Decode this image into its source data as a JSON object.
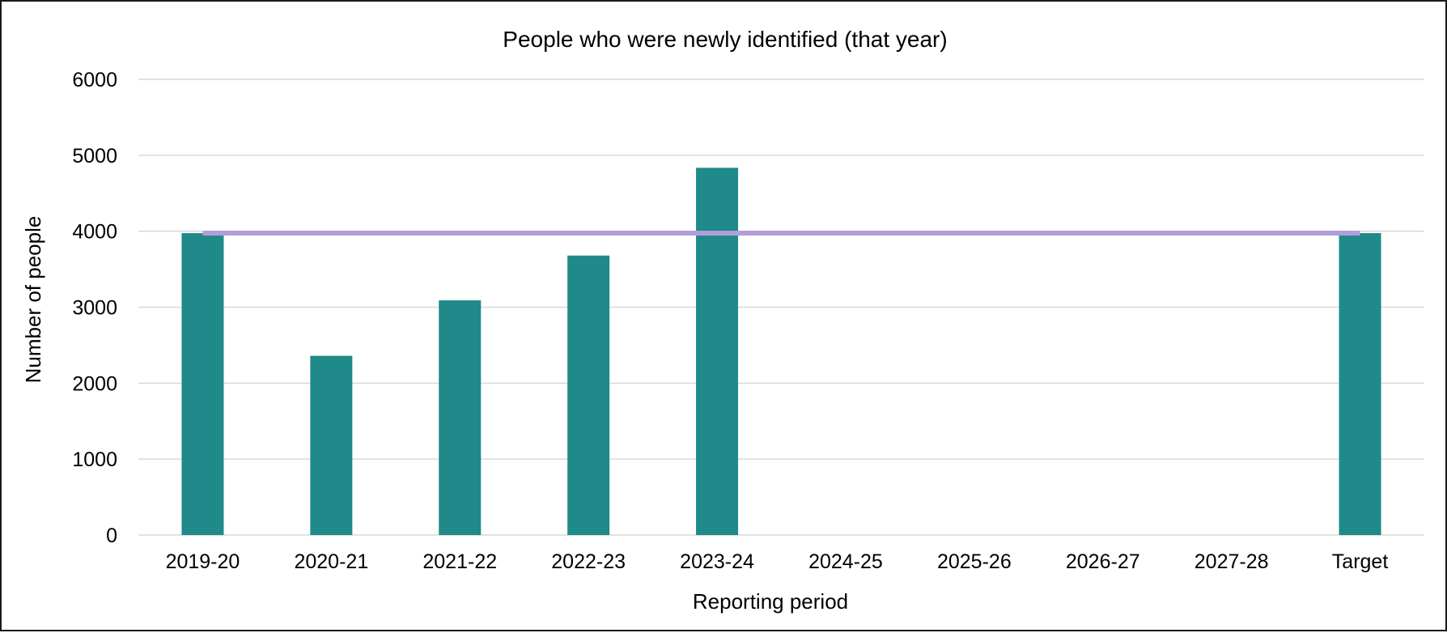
{
  "chart_data": {
    "type": "bar",
    "title": "People who were newly identified (that year)",
    "xlabel": "Reporting period",
    "ylabel": "Number of people",
    "categories": [
      "2019-20",
      "2020-21",
      "2021-22",
      "2022-23",
      "2023-24",
      "2024-25",
      "2025-26",
      "2026-27",
      "2027-28",
      "Target"
    ],
    "series": [
      {
        "type": "bar",
        "values": [
          3975,
          2360,
          3090,
          3680,
          4835,
          null,
          null,
          null,
          null,
          3975
        ]
      },
      {
        "type": "line",
        "values": [
          3975,
          3975,
          3975,
          3975,
          3975,
          3975,
          3975,
          3975,
          3975,
          3975
        ]
      }
    ],
    "ylim": [
      0,
      6000
    ],
    "yticks": [
      0,
      1000,
      2000,
      3000,
      4000,
      5000,
      6000
    ],
    "grid": true,
    "legend": "none",
    "colors": {
      "bar": "#1f8a89",
      "line": "#b39ddb",
      "grid": "#d9d9d9"
    }
  }
}
